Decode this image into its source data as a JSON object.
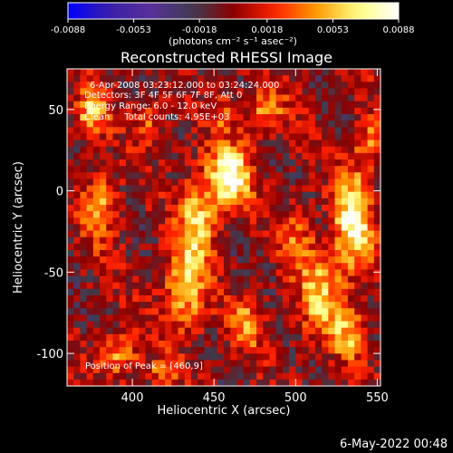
{
  "chart_data": {
    "type": "heatmap",
    "title": "Reconstructed RHESSI Image",
    "xlabel": "Heliocentric X (arcsec)",
    "ylabel": "Heliocentric Y (arcsec)",
    "xlim": [
      360,
      552
    ],
    "ylim": [
      -120,
      75
    ],
    "x_ticks": [
      400,
      450,
      500,
      550
    ],
    "y_ticks": [
      50,
      0,
      -50,
      -100
    ],
    "colorbar": {
      "range": [
        -0.0088,
        0.0088
      ],
      "tick_values": [
        -0.0088,
        -0.0053,
        -0.0018,
        0.0018,
        0.0053,
        0.0088
      ],
      "tick_labels": [
        "-0.0088",
        "-0.0053",
        "-0.0018",
        "0.0018",
        "0.0053",
        "0.0088"
      ],
      "units": "(photons cm⁻² s⁻¹ asec⁻²)",
      "colormap": [
        "#0000ff",
        "#3a1fa8",
        "#5a2f9a",
        "#3d3d52",
        "#8b0000",
        "#ff2000",
        "#ff9900",
        "#ffff80",
        "#ffffff"
      ]
    },
    "annotations": [
      "6-Apr-2008 03:23:12.000 to 03:24:24.000",
      "Detectors: 3F 4F 5F 6F 7F 8F, Att 0",
      "Energy Range: 6.0 - 12.0 keV",
      "Clean     Total counts: 4.95E+03",
      "Position of Peak = [460,9]"
    ],
    "hotspots": [
      {
        "x": 460,
        "y": 9,
        "amp": 0.0088,
        "sx": 9,
        "sy": 13
      },
      {
        "x": 440,
        "y": -18,
        "amp": 0.006,
        "sx": 8,
        "sy": 20
      },
      {
        "x": 432,
        "y": -62,
        "amp": 0.0058,
        "sx": 9,
        "sy": 18
      },
      {
        "x": 470,
        "y": -82,
        "amp": 0.0048,
        "sx": 7,
        "sy": 11
      },
      {
        "x": 535,
        "y": -20,
        "amp": 0.008,
        "sx": 8,
        "sy": 22
      },
      {
        "x": 515,
        "y": -65,
        "amp": 0.0055,
        "sx": 9,
        "sy": 18
      },
      {
        "x": 532,
        "y": -88,
        "amp": 0.0045,
        "sx": 7,
        "sy": 12
      },
      {
        "x": 380,
        "y": -10,
        "amp": 0.0052,
        "sx": 7,
        "sy": 15
      },
      {
        "x": 375,
        "y": 48,
        "amp": 0.0055,
        "sx": 7,
        "sy": 10
      },
      {
        "x": 392,
        "y": -100,
        "amp": 0.005,
        "sx": 8,
        "sy": 10
      },
      {
        "x": 480,
        "y": 48,
        "amp": 0.004,
        "sx": 10,
        "sy": 9
      },
      {
        "x": 500,
        "y": -30,
        "amp": 0.0035,
        "sx": 8,
        "sy": 14
      },
      {
        "x": 455,
        "y": 48,
        "amp": 0.003,
        "sx": 6,
        "sy": 8
      },
      {
        "x": 545,
        "y": 30,
        "amp": 0.004,
        "sx": 6,
        "sy": 12
      },
      {
        "x": 410,
        "y": 40,
        "amp": 0.0038,
        "sx": 6,
        "sy": 9
      },
      {
        "x": 418,
        "y": -112,
        "amp": 0.0035,
        "sx": 6,
        "sy": 6
      }
    ]
  },
  "timestamp": "6-May-2022 00:48"
}
